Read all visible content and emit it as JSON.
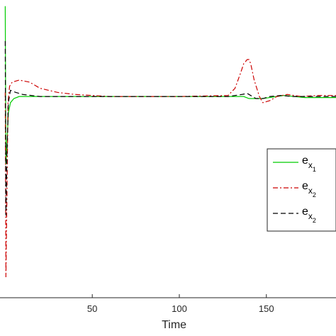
{
  "chart_data": {
    "type": "line",
    "title": "",
    "xlabel": "Time",
    "ylabel": "",
    "xlim": [
      -3,
      190
    ],
    "ylim": [
      -1,
      0.45
    ],
    "x_ticks": [
      50,
      100,
      150
    ],
    "x_tick_labels": [
      "50",
      "100",
      "150"
    ],
    "grid": false,
    "legend_position": "right",
    "series": [
      {
        "name_base": "e",
        "name_sub": "x",
        "name_subsub": "1",
        "color": "#00cc00",
        "style": "solid",
        "x": [
          0,
          0.4,
          1.0,
          1.8,
          3,
          5,
          8,
          12,
          20,
          40,
          80,
          120,
          130,
          134,
          137,
          140,
          144,
          148,
          152,
          156,
          160,
          166,
          172,
          180,
          190
        ],
        "y": [
          0.42,
          -0.35,
          -0.25,
          -0.1,
          -0.05,
          -0.03,
          -0.02,
          -0.02,
          -0.02,
          -0.02,
          -0.02,
          -0.02,
          -0.02,
          -0.02,
          -0.02,
          -0.03,
          -0.03,
          -0.03,
          -0.025,
          -0.02,
          -0.015,
          -0.02,
          -0.025,
          -0.025,
          -0.025
        ]
      },
      {
        "name_base": "e",
        "name_sub": "x",
        "name_subsub": "2",
        "color": "#cc0000",
        "style": "dashdot",
        "x": [
          0,
          0.4,
          1.0,
          1.6,
          2.5,
          4,
          8,
          14,
          20,
          30,
          40,
          60,
          100,
          128,
          132,
          135,
          137,
          139,
          140,
          141,
          143,
          146,
          148,
          152,
          156,
          162,
          170,
          180,
          190
        ],
        "y": [
          0.0,
          -0.9,
          -0.5,
          -0.05,
          0.03,
          0.05,
          0.06,
          0.05,
          0.02,
          0.0,
          -0.01,
          -0.02,
          -0.02,
          -0.015,
          0.02,
          0.09,
          0.14,
          0.16,
          0.16,
          0.14,
          0.06,
          -0.02,
          -0.05,
          -0.04,
          -0.02,
          -0.01,
          -0.02,
          -0.015,
          -0.015
        ]
      },
      {
        "name_base": "e",
        "name_sub": "x",
        "name_subsub": "2",
        "color": "#000000",
        "style": "dashed",
        "x": [
          0,
          0.4,
          1.0,
          1.8,
          3,
          6,
          10,
          20,
          40,
          80,
          120,
          128,
          132,
          136,
          139,
          141,
          144,
          148,
          152,
          158,
          165,
          175,
          190
        ],
        "y": [
          0.25,
          -0.6,
          -0.3,
          -0.05,
          0.01,
          0.0,
          -0.01,
          -0.02,
          -0.02,
          -0.02,
          -0.02,
          -0.02,
          -0.015,
          -0.01,
          -0.005,
          -0.015,
          -0.03,
          -0.03,
          -0.02,
          -0.015,
          -0.02,
          -0.02,
          -0.02
        ]
      }
    ]
  }
}
